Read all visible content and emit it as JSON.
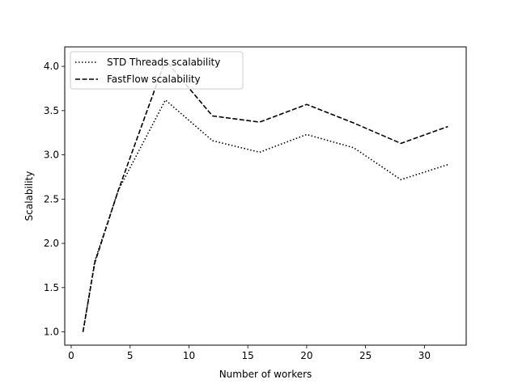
{
  "chart_data": {
    "type": "line",
    "title": "",
    "xlabel": "Number of workers",
    "ylabel": "Scalability",
    "xlim": [
      -0.55,
      33.55
    ],
    "ylim": [
      0.85,
      4.22
    ],
    "xticks": [
      0,
      5,
      10,
      15,
      20,
      25,
      30
    ],
    "yticks": [
      1.0,
      1.5,
      2.0,
      2.5,
      3.0,
      3.5,
      4.0
    ],
    "xtick_labels": [
      "0",
      "5",
      "10",
      "15",
      "20",
      "25",
      "30"
    ],
    "ytick_labels": [
      "1.0",
      "1.5",
      "2.0",
      "2.5",
      "3.0",
      "3.5",
      "4.0"
    ],
    "grid": false,
    "legend_position": "top-left",
    "series": [
      {
        "name": "STD Threads scalability",
        "style": "dotted",
        "color": "#000000",
        "x": [
          1,
          2,
          4,
          8,
          12,
          16,
          20,
          24,
          28,
          32
        ],
        "y": [
          1.0,
          1.8,
          2.6,
          3.62,
          3.16,
          3.03,
          3.23,
          3.08,
          2.72,
          2.89
        ]
      },
      {
        "name": "FastFlow scalability",
        "style": "dashed",
        "color": "#000000",
        "x": [
          1,
          2,
          4,
          8,
          12,
          16,
          20,
          24,
          28,
          32
        ],
        "y": [
          1.0,
          1.78,
          2.6,
          4.07,
          3.44,
          3.37,
          3.57,
          3.36,
          3.13,
          3.32
        ]
      }
    ]
  }
}
